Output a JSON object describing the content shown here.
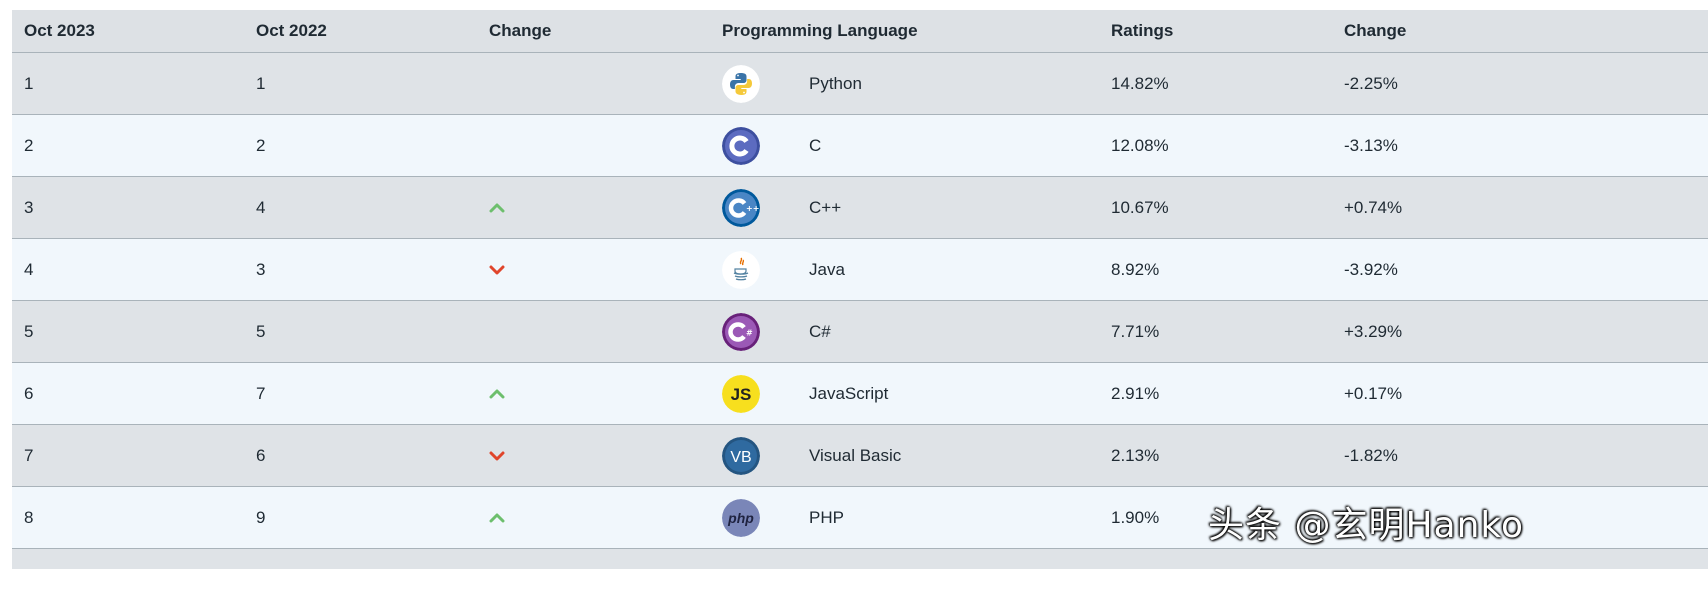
{
  "header": {
    "col_oct2023": "Oct 2023",
    "col_oct2022": "Oct 2022",
    "col_change": "Change",
    "col_language": "Programming Language",
    "col_ratings": "Ratings",
    "col_change2": "Change"
  },
  "rows": [
    {
      "rank_2023": "1",
      "rank_2022": "1",
      "trend": "none",
      "icon": "python-icon",
      "language": "Python",
      "rating": "14.82%",
      "change": "-2.25%"
    },
    {
      "rank_2023": "2",
      "rank_2022": "2",
      "trend": "none",
      "icon": "c-icon",
      "language": "C",
      "rating": "12.08%",
      "change": "-3.13%"
    },
    {
      "rank_2023": "3",
      "rank_2022": "4",
      "trend": "up",
      "icon": "cpp-icon",
      "language": "C++",
      "rating": "10.67%",
      "change": "+0.74%"
    },
    {
      "rank_2023": "4",
      "rank_2022": "3",
      "trend": "down",
      "icon": "java-icon",
      "language": "Java",
      "rating": "8.92%",
      "change": "-3.92%"
    },
    {
      "rank_2023": "5",
      "rank_2022": "5",
      "trend": "none",
      "icon": "csharp-icon",
      "language": "C#",
      "rating": "7.71%",
      "change": "+3.29%"
    },
    {
      "rank_2023": "6",
      "rank_2022": "7",
      "trend": "up",
      "icon": "javascript-icon",
      "language": "JavaScript",
      "rating": "2.91%",
      "change": "+0.17%"
    },
    {
      "rank_2023": "7",
      "rank_2022": "6",
      "trend": "down",
      "icon": "visual-basic-icon",
      "language": "Visual Basic",
      "rating": "2.13%",
      "change": "-1.82%"
    },
    {
      "rank_2023": "8",
      "rank_2022": "9",
      "trend": "up",
      "icon": "php-icon",
      "language": "PHP",
      "rating": "1.90%",
      "change": ""
    }
  ],
  "icon_text": {
    "javascript": "JS",
    "visual_basic": "VB",
    "php": "php"
  },
  "colors": {
    "trend_up": "#6dbf6d",
    "trend_down": "#e0452b",
    "header_bg": "#dde1e5",
    "row_odd_bg": "#dfe3e7",
    "row_even_bg": "#f1f7fc"
  },
  "watermark": "头条 @玄明Hanko"
}
